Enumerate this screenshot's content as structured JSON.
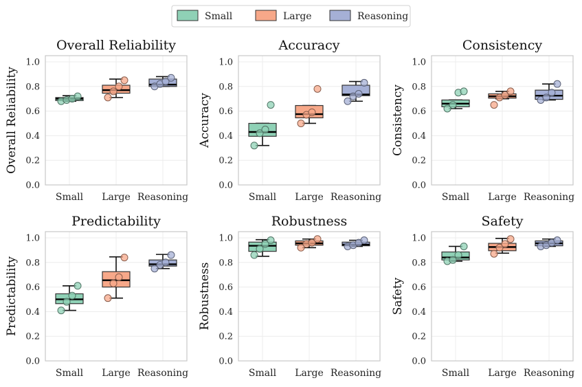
{
  "legend": {
    "placement": "top-center",
    "items": [
      {
        "label": "Small",
        "color": "#8fd1b6"
      },
      {
        "label": "Large",
        "color": "#f7a889"
      },
      {
        "label": "Reasoning",
        "color": "#a5b0d6"
      }
    ]
  },
  "chart_data": [
    {
      "type": "box",
      "title": "Overall Reliability",
      "ylabel": "Overall Reliability",
      "ylim": [
        0,
        1.05
      ],
      "yticks": [
        "0.0",
        "0.2",
        "0.4",
        "0.6",
        "0.8",
        "1.0"
      ],
      "categories": [
        "Small",
        "Large",
        "Reasoning"
      ],
      "boxes": [
        {
          "whisker_low": 0.68,
          "q1": 0.685,
          "median": 0.7,
          "q3": 0.71,
          "whisker_high": 0.725,
          "points": [
            0.68,
            0.69,
            0.7,
            0.72
          ]
        },
        {
          "whisker_low": 0.71,
          "q1": 0.745,
          "median": 0.77,
          "q3": 0.81,
          "whisker_high": 0.86,
          "points": [
            0.71,
            0.76,
            0.8,
            0.85
          ]
        },
        {
          "whisker_low": 0.8,
          "q1": 0.8,
          "median": 0.815,
          "q3": 0.86,
          "whisker_high": 0.88,
          "points": [
            0.8,
            0.82,
            0.84,
            0.87
          ]
        }
      ]
    },
    {
      "type": "box",
      "title": "Accuracy",
      "ylabel": "Accuracy",
      "ylim": [
        0,
        1.05
      ],
      "yticks": [
        "0.0",
        "0.2",
        "0.4",
        "0.6",
        "0.8",
        "1.0"
      ],
      "categories": [
        "Small",
        "Large",
        "Reasoning"
      ],
      "boxes": [
        {
          "whisker_low": 0.32,
          "q1": 0.395,
          "median": 0.43,
          "q3": 0.5,
          "whisker_high": 0.5,
          "points": [
            0.32,
            0.42,
            0.45,
            0.65
          ],
          "outliers": [
            0.65
          ]
        },
        {
          "whisker_low": 0.5,
          "q1": 0.545,
          "median": 0.575,
          "q3": 0.645,
          "whisker_high": 0.645,
          "points": [
            0.5,
            0.57,
            0.59,
            0.78
          ],
          "outliers": [
            0.78
          ]
        },
        {
          "whisker_low": 0.68,
          "q1": 0.725,
          "median": 0.735,
          "q3": 0.81,
          "whisker_high": 0.84,
          "points": [
            0.68,
            0.72,
            0.74,
            0.83
          ]
        }
      ]
    },
    {
      "type": "box",
      "title": "Consistency",
      "ylabel": "Consistency",
      "ylim": [
        0,
        1.05
      ],
      "yticks": [
        "0.0",
        "0.2",
        "0.4",
        "0.6",
        "0.8",
        "1.0"
      ],
      "categories": [
        "Small",
        "Large",
        "Reasoning"
      ],
      "boxes": [
        {
          "whisker_low": 0.62,
          "q1": 0.635,
          "median": 0.66,
          "q3": 0.69,
          "whisker_high": 0.69,
          "points": [
            0.62,
            0.65,
            0.75,
            0.76
          ],
          "outliers": [
            0.76
          ]
        },
        {
          "whisker_low": 0.7,
          "q1": 0.705,
          "median": 0.72,
          "q3": 0.74,
          "whisker_high": 0.76,
          "points": [
            0.65,
            0.71,
            0.73,
            0.76
          ],
          "outliers": [
            0.65
          ]
        },
        {
          "whisker_low": 0.69,
          "q1": 0.695,
          "median": 0.725,
          "q3": 0.77,
          "whisker_high": 0.82,
          "points": [
            0.69,
            0.71,
            0.75,
            0.82
          ]
        }
      ]
    },
    {
      "type": "box",
      "title": "Predictability",
      "ylabel": "Predictability",
      "ylim": [
        0,
        1.05
      ],
      "yticks": [
        "0.0",
        "0.2",
        "0.4",
        "0.6",
        "0.8",
        "1.0"
      ],
      "categories": [
        "Small",
        "Large",
        "Reasoning"
      ],
      "boxes": [
        {
          "whisker_low": 0.41,
          "q1": 0.465,
          "median": 0.5,
          "q3": 0.545,
          "whisker_high": 0.61,
          "points": [
            0.41,
            0.48,
            0.53,
            0.61
          ]
        },
        {
          "whisker_low": 0.51,
          "q1": 0.6,
          "median": 0.655,
          "q3": 0.725,
          "whisker_high": 0.845,
          "points": [
            0.51,
            0.63,
            0.68,
            0.84
          ]
        },
        {
          "whisker_low": 0.75,
          "q1": 0.77,
          "median": 0.785,
          "q3": 0.82,
          "whisker_high": 0.865,
          "points": [
            0.75,
            0.78,
            0.8,
            0.86
          ]
        }
      ]
    },
    {
      "type": "box",
      "title": "Robustness",
      "ylabel": "Robustness",
      "ylim": [
        0,
        1.05
      ],
      "yticks": [
        "0.0",
        "0.2",
        "0.4",
        "0.6",
        "0.8",
        "1.0"
      ],
      "categories": [
        "Small",
        "Large",
        "Reasoning"
      ],
      "boxes": [
        {
          "whisker_low": 0.85,
          "q1": 0.89,
          "median": 0.935,
          "q3": 0.965,
          "whisker_high": 0.985,
          "points": [
            0.86,
            0.91,
            0.95,
            0.98
          ]
        },
        {
          "whisker_low": 0.92,
          "q1": 0.94,
          "median": 0.955,
          "q3": 0.975,
          "whisker_high": 0.99,
          "points": [
            0.92,
            0.95,
            0.96,
            0.99
          ]
        },
        {
          "whisker_low": 0.93,
          "q1": 0.935,
          "median": 0.945,
          "q3": 0.965,
          "whisker_high": 0.98,
          "points": [
            0.93,
            0.94,
            0.96,
            0.98
          ]
        }
      ]
    },
    {
      "type": "box",
      "title": "Safety",
      "ylabel": "Safety",
      "ylim": [
        0,
        1.05
      ],
      "yticks": [
        "0.0",
        "0.2",
        "0.4",
        "0.6",
        "0.8",
        "1.0"
      ],
      "categories": [
        "Small",
        "Large",
        "Reasoning"
      ],
      "boxes": [
        {
          "whisker_low": 0.81,
          "q1": 0.82,
          "median": 0.84,
          "q3": 0.885,
          "whisker_high": 0.93,
          "points": [
            0.81,
            0.82,
            0.86,
            0.93
          ]
        },
        {
          "whisker_low": 0.875,
          "q1": 0.895,
          "median": 0.925,
          "q3": 0.955,
          "whisker_high": 0.995,
          "points": [
            0.87,
            0.92,
            0.95,
            0.99
          ]
        },
        {
          "whisker_low": 0.93,
          "q1": 0.935,
          "median": 0.955,
          "q3": 0.975,
          "whisker_high": 0.99,
          "points": [
            0.93,
            0.94,
            0.96,
            0.98
          ]
        }
      ]
    }
  ]
}
